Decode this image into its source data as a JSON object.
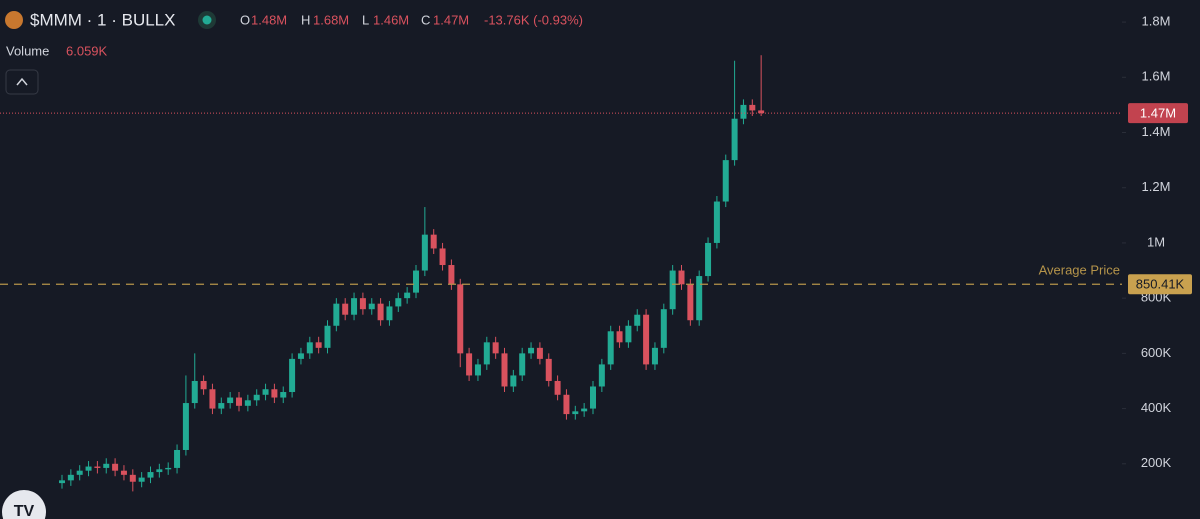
{
  "header": {
    "symbol": "$MMM · 1 · BULLX",
    "ohlc": [
      {
        "key": "O",
        "value": "1.48M"
      },
      {
        "key": "H",
        "value": "1.68M"
      },
      {
        "key": "L",
        "value": "1.46M"
      },
      {
        "key": "C",
        "value": "1.47M"
      }
    ],
    "change": "-13.76K (-0.93%)",
    "volume_label": "Volume",
    "volume_value": "6.059K"
  },
  "chart_data": {
    "type": "candlestick",
    "up_color": "#22ab94",
    "down_color": "#d9525e",
    "open": [
      130000,
      140000,
      160000,
      175000,
      190000,
      185000,
      200000,
      175000,
      160000,
      135000,
      150000,
      170000,
      180000,
      185000,
      250000,
      420000,
      500000,
      470000,
      400000,
      420000,
      440000,
      410000,
      430000,
      450000,
      470000,
      440000,
      460000,
      580000,
      600000,
      640000,
      620000,
      700000,
      780000,
      740000,
      800000,
      760000,
      780000,
      720000,
      770000,
      800000,
      820000,
      900000,
      1030000,
      980000,
      920000,
      850000,
      600000,
      520000,
      560000,
      640000,
      600000,
      480000,
      520000,
      600000,
      620000,
      580000,
      500000,
      450000,
      380000,
      390000,
      400000,
      480000,
      560000,
      680000,
      640000,
      700000,
      740000,
      560000,
      620000,
      760000,
      900000,
      850000,
      720000,
      880000,
      1000000,
      1150000,
      1300000,
      1450000,
      1500000,
      1480000
    ],
    "high": [
      160000,
      180000,
      195000,
      210000,
      210000,
      220000,
      220000,
      195000,
      180000,
      170000,
      190000,
      200000,
      205000,
      270000,
      520000,
      600000,
      520000,
      490000,
      440000,
      460000,
      460000,
      450000,
      470000,
      490000,
      490000,
      480000,
      600000,
      620000,
      660000,
      660000,
      720000,
      800000,
      800000,
      820000,
      820000,
      800000,
      800000,
      790000,
      820000,
      840000,
      920000,
      1130000,
      1050000,
      1000000,
      940000,
      870000,
      620000,
      580000,
      660000,
      660000,
      620000,
      540000,
      620000,
      640000,
      640000,
      600000,
      520000,
      470000,
      410000,
      420000,
      500000,
      580000,
      700000,
      700000,
      720000,
      760000,
      760000,
      640000,
      780000,
      920000,
      920000,
      870000,
      900000,
      1020000,
      1170000,
      1320000,
      1660000,
      1520000,
      1520000,
      1680000
    ],
    "low": [
      110000,
      120000,
      140000,
      155000,
      165000,
      165000,
      155000,
      140000,
      100000,
      115000,
      130000,
      150000,
      160000,
      165000,
      230000,
      400000,
      450000,
      380000,
      380000,
      400000,
      390000,
      390000,
      410000,
      430000,
      420000,
      420000,
      440000,
      560000,
      580000,
      600000,
      600000,
      680000,
      720000,
      720000,
      740000,
      740000,
      700000,
      700000,
      750000,
      780000,
      800000,
      880000,
      960000,
      900000,
      830000,
      550000,
      500000,
      500000,
      540000,
      580000,
      460000,
      460000,
      500000,
      580000,
      560000,
      480000,
      430000,
      360000,
      360000,
      370000,
      380000,
      460000,
      540000,
      620000,
      620000,
      680000,
      540000,
      540000,
      600000,
      740000,
      830000,
      700000,
      700000,
      860000,
      980000,
      1130000,
      1280000,
      1430000,
      1460000,
      1460000
    ],
    "close": [
      140000,
      160000,
      175000,
      190000,
      185000,
      200000,
      175000,
      160000,
      135000,
      150000,
      170000,
      180000,
      185000,
      250000,
      420000,
      500000,
      470000,
      400000,
      420000,
      440000,
      410000,
      430000,
      450000,
      470000,
      440000,
      460000,
      580000,
      600000,
      640000,
      620000,
      700000,
      780000,
      740000,
      800000,
      760000,
      780000,
      720000,
      770000,
      800000,
      820000,
      900000,
      1030000,
      980000,
      920000,
      850000,
      600000,
      520000,
      560000,
      640000,
      600000,
      480000,
      520000,
      600000,
      620000,
      580000,
      500000,
      450000,
      380000,
      390000,
      400000,
      480000,
      560000,
      680000,
      640000,
      700000,
      740000,
      560000,
      620000,
      760000,
      900000,
      850000,
      720000,
      880000,
      1000000,
      1150000,
      1300000,
      1450000,
      1500000,
      1480000,
      1470000
    ],
    "ylim": [
      0,
      1880000
    ],
    "yticks": [
      {
        "value": 200000,
        "label": "200K"
      },
      {
        "value": 400000,
        "label": "400K"
      },
      {
        "value": 600000,
        "label": "600K"
      },
      {
        "value": 800000,
        "label": "800K"
      },
      {
        "value": 1000000,
        "label": "1M"
      },
      {
        "value": 1200000,
        "label": "1.2M"
      },
      {
        "value": 1400000,
        "label": "1.4M"
      },
      {
        "value": 1600000,
        "label": "1.6M"
      },
      {
        "value": 1800000,
        "label": "1.8M"
      }
    ],
    "last_price": {
      "value": 1470000,
      "label": "1.47M"
    },
    "average_price": {
      "name": "Average Price",
      "value": 850410,
      "label": "850.41K"
    }
  }
}
